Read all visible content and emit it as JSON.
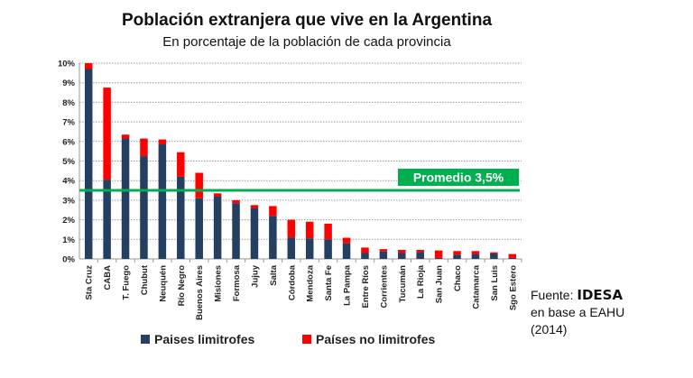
{
  "chart_data": {
    "type": "bar",
    "stacked": true,
    "title": "Población extranjera que vive en la Argentina",
    "subtitle": "En porcentaje de la población  de cada provincia",
    "categories": [
      "Sta Cruz",
      "CABA",
      "T. Fuego",
      "Chubut",
      "Neuquén",
      "Río Negro",
      "Buenos Aires",
      "Misiones",
      "Formosa",
      "Jujuy",
      "Salta",
      "Córdoba",
      "Mendoza",
      "Santa Fe",
      "La Pampa",
      "Entre Ríos",
      "Corrientes",
      "Tucumán",
      "La Rioja",
      "San Juan",
      "Chaco",
      "Catamarca",
      "San Luis",
      "Sgo Estero"
    ],
    "series": [
      {
        "name": "Paises limitrofes",
        "color": "#243F60",
        "values": [
          9.7,
          4.05,
          6.15,
          5.25,
          5.85,
          4.2,
          3.1,
          3.2,
          2.85,
          2.6,
          2.2,
          1.1,
          1.05,
          1.0,
          0.8,
          0.3,
          0.38,
          0.3,
          0.35,
          0.05,
          0.22,
          0.25,
          0.28,
          0.05
        ]
      },
      {
        "name": "Países no limitrofes",
        "color": "#FF0000",
        "values": [
          0.3,
          4.7,
          0.2,
          0.9,
          0.25,
          1.25,
          1.3,
          0.15,
          0.15,
          0.15,
          0.5,
          0.9,
          0.85,
          0.8,
          0.28,
          0.28,
          0.12,
          0.16,
          0.11,
          0.38,
          0.18,
          0.15,
          0.06,
          0.2
        ]
      }
    ],
    "ylim": [
      0,
      10
    ],
    "yticks": [
      "0%",
      "1%",
      "2%",
      "3%",
      "4%",
      "5%",
      "6%",
      "7%",
      "8%",
      "9%",
      "10%"
    ],
    "grid": true,
    "legend": "bottom",
    "reference_line": {
      "value": 3.5,
      "label": "Promedio  3,5%",
      "color": "#00B050"
    },
    "xlabel": "",
    "ylabel": ""
  },
  "source": {
    "prefix": "Fuente: ",
    "org": "IDESA",
    "line2": "en base a EAHU",
    "line3": "(2014)"
  }
}
